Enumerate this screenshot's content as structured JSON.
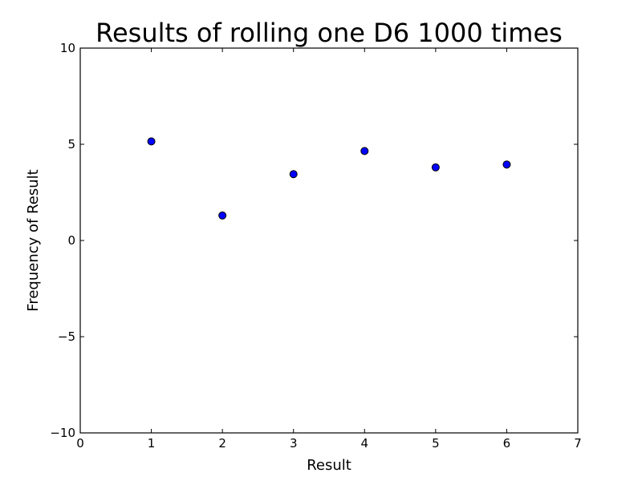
{
  "chart_data": {
    "type": "scatter",
    "title": "Results of rolling one D6 1000 times",
    "xlabel": "Result",
    "ylabel": "Frequency of Result",
    "xlim": [
      0,
      7
    ],
    "ylim": [
      -10,
      10
    ],
    "xticks": [
      "0",
      "1",
      "2",
      "3",
      "4",
      "5",
      "6",
      "7"
    ],
    "yticks": [
      "−10",
      "−5",
      "0",
      "5",
      "10"
    ],
    "grid": false,
    "legend": "none",
    "marker_color": "#0000ff",
    "marker_edge_color": "#000000",
    "points": [
      {
        "x": 1,
        "y": 5.15
      },
      {
        "x": 2,
        "y": 1.3
      },
      {
        "x": 3,
        "y": 3.45
      },
      {
        "x": 4,
        "y": 4.65
      },
      {
        "x": 5,
        "y": 3.8
      },
      {
        "x": 6,
        "y": 3.95
      }
    ]
  }
}
